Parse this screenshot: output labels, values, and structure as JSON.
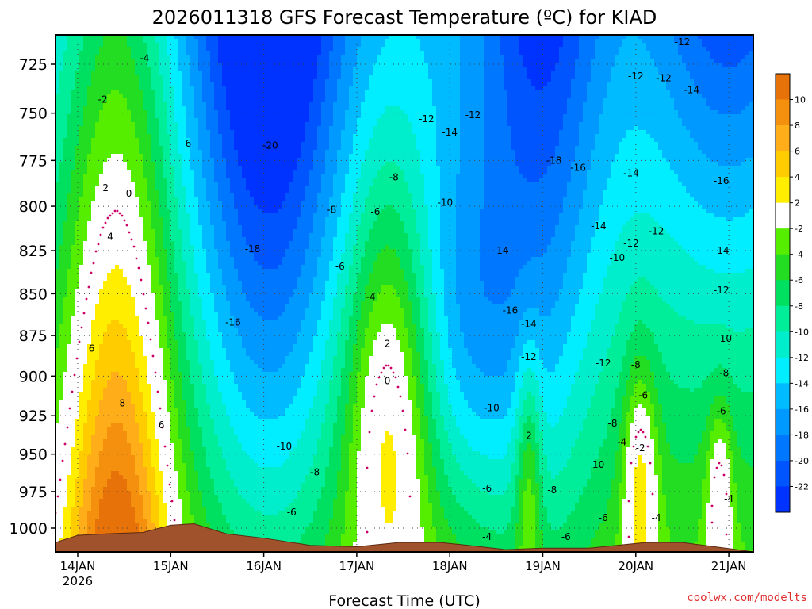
{
  "chart_data": {
    "type": "heatmap",
    "title": "2026011318 GFS Forecast Temperature (ºC) for KIAD",
    "xlabel": "Forecast Time (UTC)",
    "ylabel": "",
    "credit": "coolwx.com/modelts",
    "y_ticks": [
      725,
      750,
      775,
      800,
      825,
      850,
      875,
      900,
      925,
      950,
      975,
      1000
    ],
    "ylim": [
      1000,
      712
    ],
    "y_scale": "log-pressure",
    "x_ticks": [
      "14JAN",
      "15JAN",
      "16JAN",
      "17JAN",
      "18JAN",
      "19JAN",
      "20JAN",
      "21JAN"
    ],
    "x_tick_year": "2026",
    "colorbar": {
      "labels": [
        "10",
        "8",
        "6",
        "4",
        "2",
        "-2",
        "-4",
        "-6",
        "-8",
        "-10",
        "-12",
        "-14",
        "-16",
        "-18",
        "-20",
        "-22"
      ],
      "bins": [
        {
          "lo": 10,
          "hi": 12,
          "color": "#e8720a"
        },
        {
          "lo": 8,
          "hi": 10,
          "color": "#f5900f"
        },
        {
          "lo": 6,
          "hi": 8,
          "color": "#ffae1a"
        },
        {
          "lo": 4,
          "hi": 6,
          "color": "#ffcc00"
        },
        {
          "lo": 2,
          "hi": 4,
          "color": "#ffee00"
        },
        {
          "lo": -2,
          "hi": 2,
          "color": "#ffffff"
        },
        {
          "lo": -4,
          "hi": -2,
          "color": "#55ee00"
        },
        {
          "lo": -6,
          "hi": -4,
          "color": "#22dd22"
        },
        {
          "lo": -8,
          "hi": -6,
          "color": "#00e060"
        },
        {
          "lo": -10,
          "hi": -8,
          "color": "#00ee9a"
        },
        {
          "lo": -12,
          "hi": -10,
          "color": "#00eecc"
        },
        {
          "lo": -14,
          "hi": -12,
          "color": "#00eeff"
        },
        {
          "lo": -16,
          "hi": -14,
          "color": "#00bbff"
        },
        {
          "lo": -18,
          "hi": -16,
          "color": "#0099ff"
        },
        {
          "lo": -20,
          "hi": -18,
          "color": "#0077ff"
        },
        {
          "lo": -22,
          "hi": -20,
          "color": "#0055ff"
        },
        {
          "lo": -24,
          "hi": -22,
          "color": "#0033ff"
        }
      ]
    },
    "colors": {
      "ground": "#a0522d",
      "freezing_line": "#cc0066",
      "contour": "#000000"
    },
    "grid": true,
    "contour_labels": [
      {
        "t": "-4",
        "day": 0.72,
        "p": 722
      },
      {
        "t": "-2",
        "day": 0.27,
        "p": 743
      },
      {
        "t": "-6",
        "day": 1.17,
        "p": 766
      },
      {
        "t": "2",
        "day": 0.3,
        "p": 790
      },
      {
        "t": "0",
        "day": 0.55,
        "p": 793
      },
      {
        "t": "4",
        "day": 0.35,
        "p": 817
      },
      {
        "t": "6",
        "day": 0.15,
        "p": 883
      },
      {
        "t": "8",
        "day": 0.48,
        "p": 917
      },
      {
        "t": "6",
        "day": 0.9,
        "p": 931
      },
      {
        "t": "-20",
        "day": 2.07,
        "p": 767
      },
      {
        "t": "-18",
        "day": 1.88,
        "p": 824
      },
      {
        "t": "-16",
        "day": 1.67,
        "p": 867
      },
      {
        "t": "-8",
        "day": 2.73,
        "p": 802
      },
      {
        "t": "-6",
        "day": 2.82,
        "p": 834
      },
      {
        "t": "-6",
        "day": 3.2,
        "p": 803
      },
      {
        "t": "-4",
        "day": 3.15,
        "p": 852
      },
      {
        "t": "2",
        "day": 3.33,
        "p": 880
      },
      {
        "t": "0",
        "day": 3.33,
        "p": 903
      },
      {
        "t": "2",
        "day": 4.85,
        "p": 938
      },
      {
        "t": "-10",
        "day": 2.22,
        "p": 945
      },
      {
        "t": "-8",
        "day": 2.55,
        "p": 962
      },
      {
        "t": "-6",
        "day": 2.3,
        "p": 989
      },
      {
        "t": "-12",
        "day": 3.75,
        "p": 753
      },
      {
        "t": "-14",
        "day": 4.0,
        "p": 760
      },
      {
        "t": "-12",
        "day": 4.25,
        "p": 751
      },
      {
        "t": "-8",
        "day": 3.4,
        "p": 784
      },
      {
        "t": "-10",
        "day": 3.95,
        "p": 798
      },
      {
        "t": "-14",
        "day": 4.55,
        "p": 825
      },
      {
        "t": "-16",
        "day": 4.65,
        "p": 860
      },
      {
        "t": "-14",
        "day": 4.85,
        "p": 868
      },
      {
        "t": "-12",
        "day": 4.85,
        "p": 888
      },
      {
        "t": "-10",
        "day": 4.45,
        "p": 920
      },
      {
        "t": "-6",
        "day": 4.4,
        "p": 973
      },
      {
        "t": "-8",
        "day": 5.1,
        "p": 974
      },
      {
        "t": "-4",
        "day": 4.4,
        "p": 1006
      },
      {
        "t": "-6",
        "day": 5.25,
        "p": 1006
      },
      {
        "t": "-18",
        "day": 5.12,
        "p": 775
      },
      {
        "t": "-16",
        "day": 5.38,
        "p": 779
      },
      {
        "t": "-14",
        "day": 5.6,
        "p": 811
      },
      {
        "t": "-14",
        "day": 5.95,
        "p": 782
      },
      {
        "t": "-12",
        "day": 6.0,
        "p": 731
      },
      {
        "t": "-12",
        "day": 6.3,
        "p": 732
      },
      {
        "t": "-12",
        "day": 6.5,
        "p": 714
      },
      {
        "t": "-14",
        "day": 6.6,
        "p": 738
      },
      {
        "t": "-12",
        "day": 6.22,
        "p": 814
      },
      {
        "t": "-12",
        "day": 5.95,
        "p": 821
      },
      {
        "t": "-10",
        "day": 5.8,
        "p": 829
      },
      {
        "t": "-12",
        "day": 5.65,
        "p": 892
      },
      {
        "t": "-8",
        "day": 6.0,
        "p": 893
      },
      {
        "t": "-6",
        "day": 6.08,
        "p": 912
      },
      {
        "t": "-8",
        "day": 5.75,
        "p": 930
      },
      {
        "t": "-4",
        "day": 5.85,
        "p": 942
      },
      {
        "t": "-2",
        "day": 6.05,
        "p": 946
      },
      {
        "t": "-10",
        "day": 5.58,
        "p": 957
      },
      {
        "t": "-6",
        "day": 5.65,
        "p": 993
      },
      {
        "t": "-4",
        "day": 6.22,
        "p": 993
      },
      {
        "t": "-16",
        "day": 6.92,
        "p": 786
      },
      {
        "t": "-14",
        "day": 6.92,
        "p": 825
      },
      {
        "t": "-12",
        "day": 6.92,
        "p": 848
      },
      {
        "t": "-10",
        "day": 6.95,
        "p": 877
      },
      {
        "t": "-8",
        "day": 6.95,
        "p": 898
      },
      {
        "t": "-6",
        "day": 6.92,
        "p": 922
      },
      {
        "t": "-4",
        "day": 7.0,
        "p": 980
      }
    ]
  }
}
